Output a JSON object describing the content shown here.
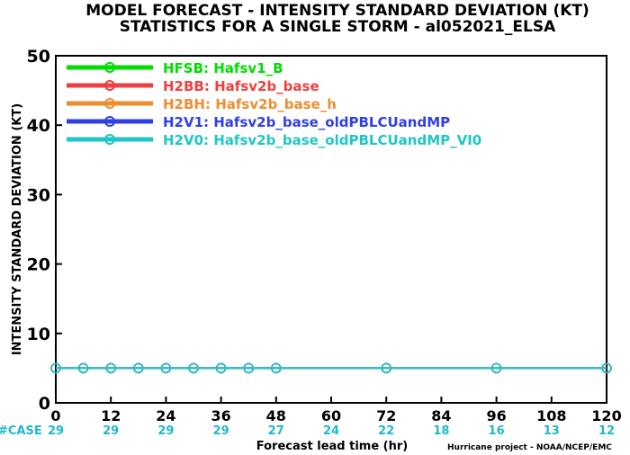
{
  "chart_data": {
    "type": "line",
    "title": "MODEL FORECAST - INTENSITY STANDARD DEVIATION (KT)",
    "subtitle": "STATISTICS FOR A SINGLE STORM - al052021_ELSA",
    "xlabel": "Forecast lead time (hr)",
    "ylabel": "INTENSITY STANDARD DEVIATION (KT)",
    "xlim": [
      0,
      120
    ],
    "ylim": [
      0,
      50
    ],
    "xticks": [
      0,
      12,
      24,
      36,
      48,
      60,
      72,
      84,
      96,
      108,
      120
    ],
    "yticks": [
      0,
      10,
      20,
      30,
      40,
      50
    ],
    "legend_position": "top-left",
    "series": [
      {
        "name": "HFSB: Hafsv1_B",
        "color": "#00dd00",
        "x": [
          0,
          6,
          12,
          18,
          24,
          30,
          36,
          42,
          48,
          72,
          96,
          120
        ],
        "values": [
          5,
          5,
          5,
          5,
          5,
          5,
          5,
          5,
          5,
          5,
          5,
          5
        ]
      },
      {
        "name": "H2BB: Hafsv2b_base",
        "color": "#ee4040",
        "x": [
          0,
          6,
          12,
          18,
          24,
          30,
          36,
          42,
          48,
          72,
          96,
          120
        ],
        "values": [
          5,
          5,
          5,
          5,
          5,
          5,
          5,
          5,
          5,
          5,
          5,
          5
        ]
      },
      {
        "name": "H2BH: Hafsv2b_base_h",
        "color": "#f08c30",
        "x": [
          0,
          6,
          12,
          18,
          24,
          30,
          36,
          42,
          48,
          72,
          96,
          120
        ],
        "values": [
          5,
          5,
          5,
          5,
          5,
          5,
          5,
          5,
          5,
          5,
          5,
          5
        ]
      },
      {
        "name": "H2V1: Hafsv2b_base_oldPBLCUandMP",
        "color": "#2f3fe6",
        "x": [
          0,
          6,
          12,
          18,
          24,
          30,
          36,
          42,
          48,
          72,
          96,
          120
        ],
        "values": [
          5,
          5,
          5,
          5,
          5,
          5,
          5,
          5,
          5,
          5,
          5,
          5
        ]
      },
      {
        "name": "H2V0: Hafsv2b_base_oldPBLCUandMP_VI0",
        "color": "#1fc6c6",
        "x": [
          0,
          6,
          12,
          18,
          24,
          30,
          36,
          42,
          48,
          72,
          96,
          120
        ],
        "values": [
          5,
          5,
          5,
          5,
          5,
          5,
          5,
          5,
          5,
          5,
          5,
          5
        ]
      }
    ],
    "case_label": "#CASE",
    "case_counts": [
      29,
      29,
      29,
      29,
      27,
      24,
      22,
      18,
      16,
      13,
      12
    ],
    "case_color": "#1fb8c8",
    "credit": "Hurricane project - NOAA/NCEP/EMC"
  }
}
